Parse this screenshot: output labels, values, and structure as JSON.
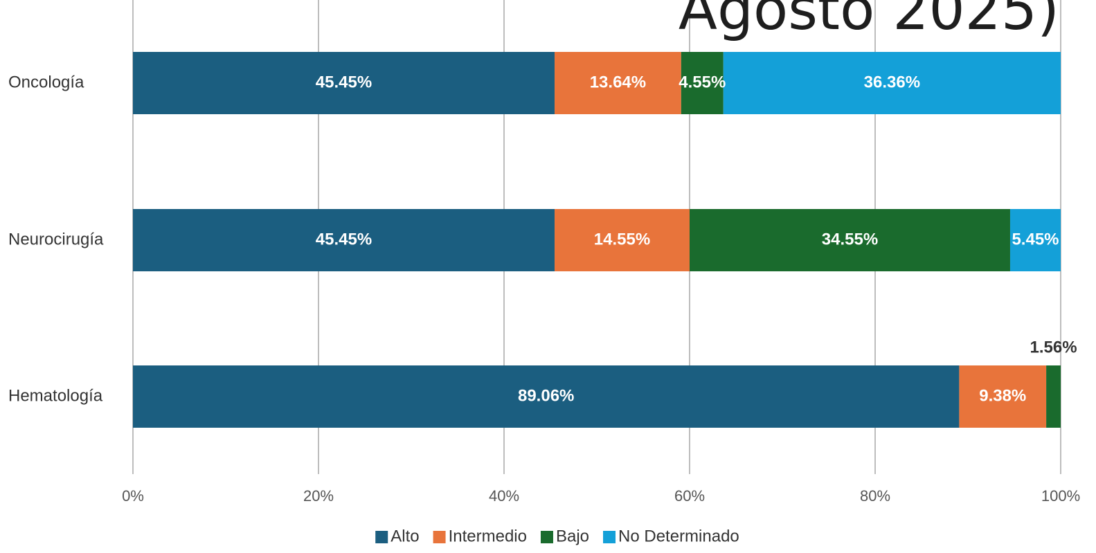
{
  "chart_data": {
    "type": "stacked_bar_horizontal",
    "title": "Agosto 2025)",
    "categories": [
      "Oncología",
      "Neurocirugía",
      "Hematología"
    ],
    "series": [
      {
        "name": "Alto",
        "color": "#1b5e80",
        "values": [
          45.45,
          45.45,
          89.06
        ],
        "value_labels": [
          "45.45%",
          "45.45%",
          "89.06%"
        ]
      },
      {
        "name": "Intermedio",
        "color": "#e8743b",
        "values": [
          13.64,
          14.55,
          9.38
        ],
        "value_labels": [
          "13.64%",
          "14.55%",
          "9.38%"
        ]
      },
      {
        "name": "Bajo",
        "color": "#1a6b2d",
        "values": [
          4.55,
          34.55,
          1.56
        ],
        "value_labels": [
          "4.55%",
          "34.55%",
          "1.56%"
        ]
      },
      {
        "name": "No Determinado",
        "color": "#14a0d8",
        "values": [
          36.36,
          5.45,
          null
        ],
        "value_labels": [
          "36.36%",
          "5.45%",
          null
        ]
      }
    ],
    "xlim": [
      0,
      100
    ],
    "xticks": [
      {
        "value": 0,
        "label": "0%"
      },
      {
        "value": 20,
        "label": "20%"
      },
      {
        "value": 40,
        "label": "40%"
      },
      {
        "value": 60,
        "label": "60%"
      },
      {
        "value": 80,
        "label": "80%"
      },
      {
        "value": 100,
        "label": "100%"
      }
    ],
    "grid": true,
    "legend": "bottom"
  }
}
